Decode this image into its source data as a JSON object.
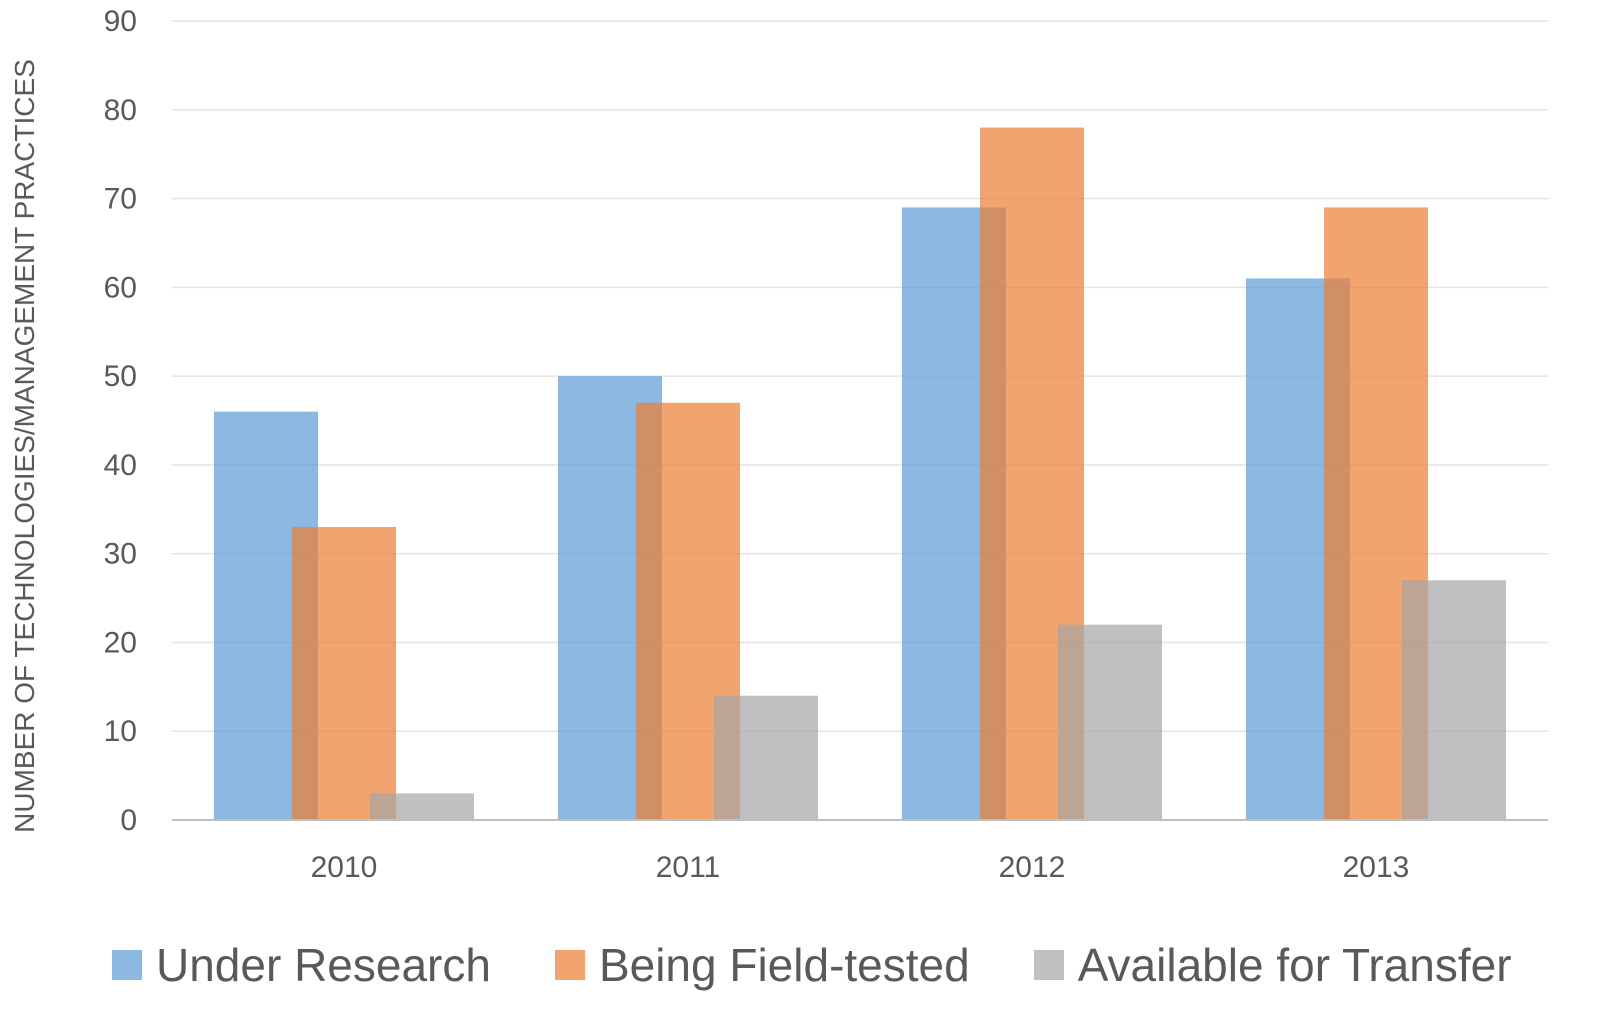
{
  "chart_data": {
    "type": "bar",
    "title": "",
    "xlabel": "",
    "ylabel": "NUMBER OF TECHNOLOGIES/MANAGEMENT PRACTICES",
    "categories": [
      "2010",
      "2011",
      "2012",
      "2013"
    ],
    "ylim": [
      0,
      90
    ],
    "yticks": [
      0,
      10,
      20,
      30,
      40,
      50,
      60,
      70,
      80,
      90
    ],
    "grid": true,
    "legend_position": "bottom",
    "series": [
      {
        "name": "Under Research",
        "color": "#5b9bd5",
        "values": [
          46,
          50,
          69,
          61
        ]
      },
      {
        "name": "Being Field-tested",
        "color": "#ed7d31",
        "values": [
          33,
          47,
          78,
          69
        ]
      },
      {
        "name": "Available for Transfer",
        "color": "#a5a5a5",
        "values": [
          3,
          14,
          22,
          27
        ]
      }
    ]
  }
}
